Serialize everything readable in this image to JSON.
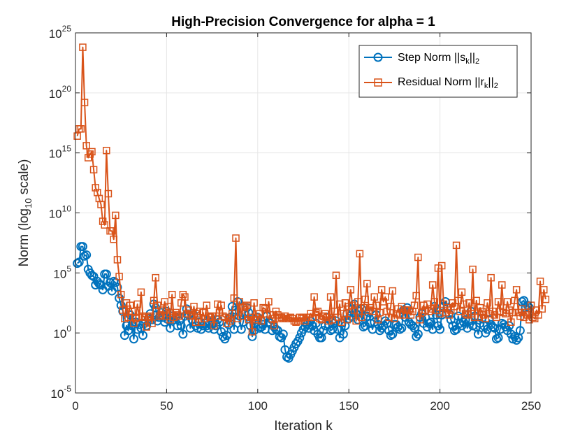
{
  "chart_data": {
    "type": "line",
    "title": "High-Precision Convergence for alpha = 1",
    "xlabel": "Iteration k",
    "ylabel": {
      "pre": "Norm (log",
      "sub": "10",
      "post": " scale)"
    },
    "xlim": [
      0,
      250
    ],
    "ylim_log10": [
      -5,
      25
    ],
    "yscale": "log",
    "grid": true,
    "xticks": [
      0,
      50,
      100,
      150,
      200,
      250
    ],
    "xtick_labels": [
      "0",
      "50",
      "100",
      "150",
      "200",
      "250"
    ],
    "yticks_log10": [
      -5,
      0,
      5,
      10,
      15,
      20,
      25
    ],
    "ytick_labels": [
      {
        "base": "10",
        "exp": "-5"
      },
      {
        "base": "10",
        "exp": "0"
      },
      {
        "base": "10",
        "exp": "5"
      },
      {
        "base": "10",
        "exp": "10"
      },
      {
        "base": "10",
        "exp": "15"
      },
      {
        "base": "10",
        "exp": "20"
      },
      {
        "base": "10",
        "exp": "25"
      }
    ],
    "legend_position": "top-right",
    "series": [
      {
        "name": "Step Norm ||s_k||_2",
        "legend": {
          "pre": "Step Norm ||s",
          "sub1": "k",
          "mid": "||",
          "sub2": "2"
        },
        "color": "#0072BD",
        "marker": "circle",
        "log10_values": [
          5.8,
          5.9,
          7.2,
          7.2,
          6.4,
          6.5,
          5.3,
          5,
          4.8,
          4.7,
          4,
          4.3,
          4.1,
          4,
          3.6,
          4.9,
          4.9,
          3.9,
          4.2,
          3.5,
          4.3,
          4.2,
          3.8,
          2.9,
          2.3,
          1.8,
          -0.2,
          0.6,
          0.2,
          1.5,
          0.6,
          -0.5,
          0.9,
          0.3,
          0.7,
          0.4,
          -0.2,
          0.8,
          0.6,
          1.2,
          1.6,
          1.1,
          2.4,
          2.1,
          1,
          1.3,
          1.7,
          1.3,
          0.9,
          1.8,
          1.1,
          0.4,
          1.4,
          1.1,
          1.3,
          0.6,
          1,
          0.6,
          -0.1,
          1.4,
          2,
          1.5,
          0.4,
          1.1,
          1.5,
          0.6,
          0.4,
          0.9,
          0.3,
          0.6,
          0.8,
          0.6,
          0.4,
          1.3,
          0.8,
          0.3,
          0.6,
          1.1,
          0.9,
          0.1,
          -0.3,
          -0.5,
          -0.2,
          0.7,
          1.3,
          2.2,
          0.3,
          1.9,
          2.6,
          1.4,
          0.3,
          0.9,
          1.6,
          2.1,
          1.7,
          0.6,
          -0.3,
          0.2,
          1.1,
          1.3,
          0.4,
          0.5,
          0.7,
          0.3,
          1.4,
          0.9,
          0.8,
          0.2,
          0.5,
          0.3,
          0.2,
          -0.3,
          -0.4,
          -0.1,
          -1.4,
          -2,
          -2.1,
          -1.8,
          -1.5,
          -1.2,
          -0.9,
          -0.7,
          -0.4,
          0,
          0.3,
          0.5,
          0.7,
          0.4,
          1,
          0.6,
          0.2,
          0.8,
          -0.1,
          -0.4,
          -0.4,
          0.2,
          0.6,
          1.3,
          0.7,
          0.2,
          0.3,
          0.8,
          1,
          0.3,
          -0.4,
          0.8,
          -0.1,
          0.6,
          1.6,
          1.2,
          1.4,
          2,
          2.4,
          1.6,
          1.1,
          1.8,
          2,
          0.5,
          0.6,
          1.4,
          1.7,
          0.8,
          0.3,
          0.9,
          1.5,
          0.7,
          0.2,
          0.4,
          0.6,
          1,
          0.8,
          0.2,
          -0.2,
          -0.1,
          0.7,
          0.7,
          0.5,
          0.3,
          0.4,
          1.9,
          1.3,
          2.1,
          0.9,
          0.7,
          0.6,
          0.4,
          -0.3,
          -0.1,
          1.3,
          1.6,
          0.8,
          1.3,
          0.5,
          0.8,
          0.9,
          0.3,
          2.2,
          1.5,
          0.6,
          0.3,
          1.5,
          2.2,
          2.6,
          2.1,
          1.6,
          1.1,
          0.6,
          0.2,
          0.3,
          1.4,
          0.8,
          0.6,
          0.9,
          1.1,
          0.4,
          1,
          1.8,
          0.6,
          1.4,
          0.5,
          -0.1,
          0.8,
          1.2,
          0.6,
          0,
          0.3,
          1.1,
          0.7,
          0.5,
          0.4,
          -0.5,
          -0.4,
          0.3,
          0.8,
          0.7,
          0.5,
          0.2,
          0.6,
          -0.1,
          -0.5,
          -0.3,
          -0.6,
          -0.4,
          0.2,
          2.6,
          2.7,
          2.1,
          2.3,
          2.1
        ]
      },
      {
        "name": "Residual Norm ||r_k||_2",
        "legend": {
          "pre": "Residual Norm ||r",
          "sub1": "k",
          "mid": "||",
          "sub2": "2"
        },
        "color": "#D95319",
        "marker": "square",
        "log10_values": [
          16.4,
          17,
          17,
          23.8,
          19.2,
          15.6,
          14.6,
          14.9,
          15.1,
          13.6,
          12.1,
          11.7,
          11.2,
          10.7,
          9.3,
          9,
          15.2,
          11.6,
          8.5,
          8.5,
          7.8,
          9.8,
          6.1,
          4.7,
          3.2,
          1.9,
          1.2,
          2.5,
          1.3,
          2.3,
          1.8,
          0.8,
          1.2,
          2.4,
          1.3,
          3.4,
          1.4,
          1.3,
          0.5,
          1.3,
          1.4,
          0.8,
          2.7,
          4.6,
          2.3,
          1.4,
          1.5,
          1.9,
          2.6,
          1.4,
          2.2,
          1.1,
          3.2,
          1.3,
          1.7,
          1.5,
          1.4,
          2.5,
          3.2,
          3,
          1.6,
          1.9,
          1.4,
          1.5,
          2.2,
          0.9,
          1.6,
          1.8,
          0.9,
          1.7,
          1.2,
          2.3,
          1.4,
          1.3,
          1.4,
          0.6,
          1.4,
          2.4,
          1.7,
          2.3,
          1.4,
          1.3,
          0.8,
          1.2,
          1,
          1.6,
          2.9,
          7.9,
          1.2,
          2.6,
          1.4,
          2.1,
          2.2,
          2.3,
          1.1,
          1.3,
          0.1,
          2.5,
          1.3,
          1.1,
          1.6,
          1,
          2.1,
          2,
          1.6,
          2.6,
          1.5,
          1.2,
          0.6,
          1.8,
          1.5,
          1.2,
          1.3,
          1.2,
          1.4,
          1.2,
          1.2,
          1.3,
          1.2,
          1,
          0.9,
          1,
          1.3,
          1.2,
          1.3,
          1,
          1.3,
          1.3,
          1.6,
          1.3,
          3,
          1.7,
          1.8,
          1.2,
          1.1,
          1.4,
          1.6,
          1.3,
          1,
          3,
          1.1,
          1.8,
          4.8,
          1.3,
          2.4,
          0.9,
          1.6,
          2.5,
          1.1,
          2.2,
          3.6,
          2.3,
          1.9,
          1,
          2.6,
          6.6,
          1.3,
          2.1,
          2.8,
          4.1,
          1.9,
          2.1,
          1.8,
          3,
          2.3,
          1.1,
          1.7,
          3.6,
          2.6,
          3,
          1.8,
          1.3,
          2.2,
          3.5,
          1.2,
          1.6,
          2,
          1.5,
          2.2,
          1.5,
          1.9,
          1.9,
          1.9,
          1.5,
          1.8,
          2.3,
          3.1,
          6.3,
          1.1,
          1.7,
          2.3,
          1.9,
          2.4,
          1.8,
          2,
          4,
          2.6,
          1.9,
          5.4,
          1.6,
          5.6,
          2.4,
          1.7,
          2.1,
          1.5,
          1.9,
          2.5,
          2.2,
          7.3,
          2.7,
          1.8,
          3.4,
          2.4,
          1.6,
          1.5,
          2.5,
          1.6,
          5.3,
          1.3,
          2.7,
          1.3,
          2.1,
          1.8,
          1.5,
          1.2,
          2.5,
          1.6,
          4.6,
          1.8,
          1.5,
          1.3,
          2.6,
          1.8,
          4,
          1.7,
          1.6,
          2.6,
          1.9,
          0.9,
          1.7,
          2.7,
          3.6,
          1.7,
          1.4,
          2,
          1.3,
          1.7,
          1.5,
          1.1,
          2.3,
          1.3,
          1.2,
          1.9,
          1.5,
          4.3,
          2,
          3.6,
          2.8
        ]
      }
    ]
  }
}
